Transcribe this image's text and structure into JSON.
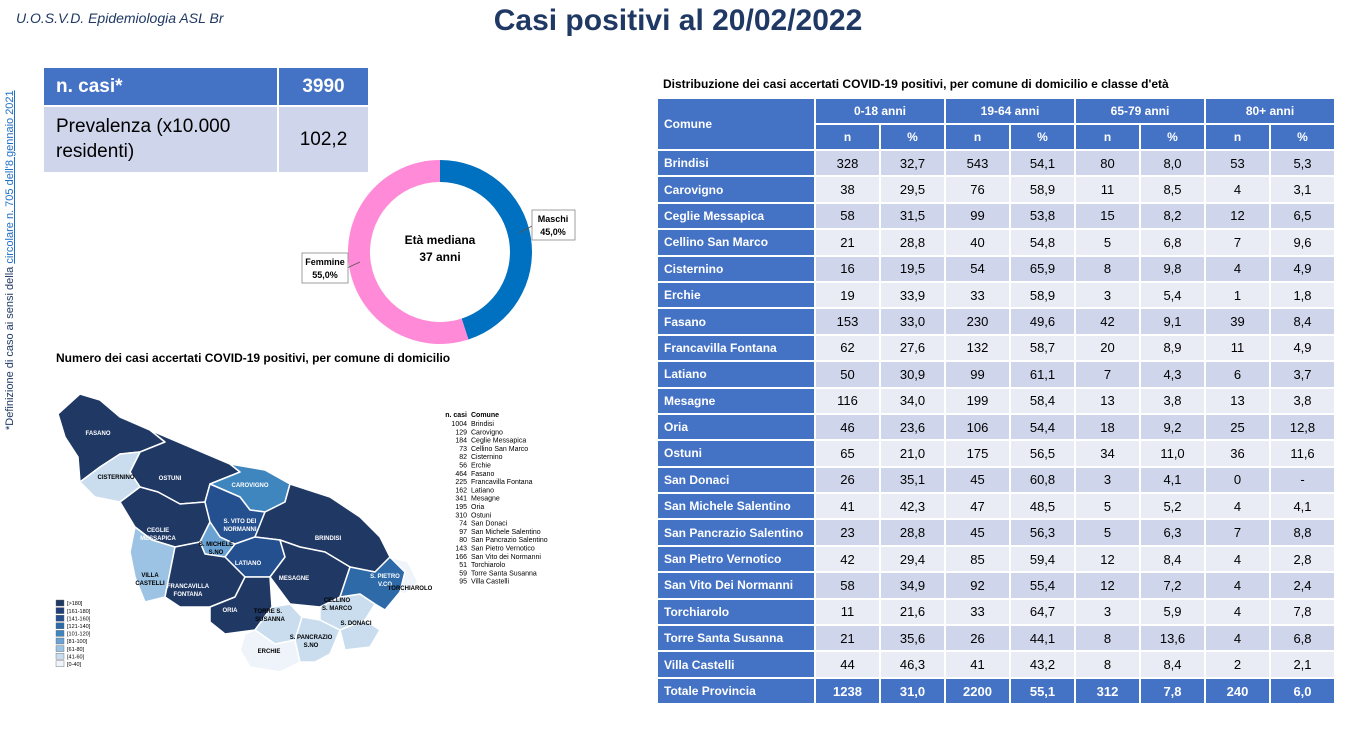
{
  "header": {
    "org": "U.O.S.V.D. Epidemiologia ASL Br",
    "title": "Casi positivi al 20/02/2022"
  },
  "side_note": {
    "prefix": "*Definizione di caso ai sensi della ",
    "link": "circolare n. 705 dell'8 gennaio 2021"
  },
  "kpi": {
    "cases_label": "n. casi*",
    "cases_value": "3990",
    "prevalence_label": "Prevalenza (x10.000 residenti)",
    "prevalence_value": "102,2"
  },
  "donut": {
    "center_line1": "Età mediana",
    "center_line2": "37 anni",
    "male_label": "Maschi",
    "male_value": "45,0%",
    "male_fraction": 0.45,
    "female_label": "Femmine",
    "female_value": "55,0%",
    "female_fraction": 0.55,
    "male_color": "#0070c0",
    "female_color": "#ff8ad8"
  },
  "map": {
    "title": "Numero dei casi accertati COVID-19 positivi, per comune di domicilio",
    "legend_header_n": "n. casi",
    "legend_header_c": "Comune",
    "list": [
      {
        "n": "1004",
        "c": "Brindisi"
      },
      {
        "n": "129",
        "c": "Carovigno"
      },
      {
        "n": "184",
        "c": "Ceglie Messapica"
      },
      {
        "n": "73",
        "c": "Cellino San Marco"
      },
      {
        "n": "82",
        "c": "Cisternino"
      },
      {
        "n": "56",
        "c": "Erchie"
      },
      {
        "n": "464",
        "c": "Fasano"
      },
      {
        "n": "225",
        "c": "Francavilla Fontana"
      },
      {
        "n": "162",
        "c": "Latiano"
      },
      {
        "n": "341",
        "c": "Mesagne"
      },
      {
        "n": "195",
        "c": "Oria"
      },
      {
        "n": "310",
        "c": "Ostuni"
      },
      {
        "n": "74",
        "c": "San Donaci"
      },
      {
        "n": "97",
        "c": "San Michele Salentino"
      },
      {
        "n": "80",
        "c": "San Pancrazio Salentino"
      },
      {
        "n": "143",
        "c": "San Pietro Vernotico"
      },
      {
        "n": "166",
        "c": "San Vito dei Normanni"
      },
      {
        "n": "51",
        "c": "Torchiarolo"
      },
      {
        "n": "59",
        "c": "Torre Santa Susanna"
      },
      {
        "n": "95",
        "c": "Villa Castelli"
      }
    ],
    "scale": [
      "[>180]",
      "[161-180]",
      "[141-160]",
      "[121-140]",
      "[101-120]",
      "[81-100]",
      "[61-80]",
      "[41-60]",
      "[0-40]"
    ],
    "scale_colors": [
      "#1f3864",
      "#203f7a",
      "#25508f",
      "#2e6aa8",
      "#3f86bf",
      "#6aa3d3",
      "#9cc3e4",
      "#c9ddef",
      "#eef4fa"
    ],
    "labels": {
      "fasano": "FASANO",
      "ostuni": "OSTUNI",
      "cisternino": "CISTERNINO",
      "carovigno": "CAROVIGNO",
      "ceglie1": "CEGLIE",
      "ceglie2": "MESSAPICA",
      "svito1": "S. VITO DEI",
      "svito2": "NORMANNI",
      "smichele1": "S. MICHELE",
      "smichele2": "S.NO",
      "brindisi": "BRINDISI",
      "latiano": "LATIANO",
      "villa1": "VILLA",
      "villa2": "CASTELLI",
      "francavilla1": "FRANCAVILLA",
      "francavilla2": "FONTANA",
      "mesagne": "MESAGNE",
      "oria": "ORIA",
      "torre1": "TORRE S.",
      "torre2": "SUSANNA",
      "erchie": "ERCHIE",
      "span1": "S. PANCRAZIO",
      "span2": "S.NO",
      "cellino1": "CELLINO",
      "cellino2": "S. MARCO",
      "sdonaci": "S. DONACI",
      "spietro1": "S. PIETRO",
      "spietro2": "V.CO",
      "torchiarolo": "TORCHIAROLO"
    }
  },
  "table": {
    "title": "Distribuzione dei casi accertati COVID-19 positivi, per comune di domicilio e classe d'età",
    "comune_header": "Comune",
    "age_groups": [
      "0-18 anni",
      "19-64 anni",
      "65-79 anni",
      "80+ anni"
    ],
    "n_header": "n",
    "pct_header": "%",
    "rows": [
      {
        "name": "Brindisi",
        "v": [
          "328",
          "32,7",
          "543",
          "54,1",
          "80",
          "8,0",
          "53",
          "5,3"
        ]
      },
      {
        "name": "Carovigno",
        "v": [
          "38",
          "29,5",
          "76",
          "58,9",
          "11",
          "8,5",
          "4",
          "3,1"
        ]
      },
      {
        "name": "Ceglie Messapica",
        "v": [
          "58",
          "31,5",
          "99",
          "53,8",
          "15",
          "8,2",
          "12",
          "6,5"
        ]
      },
      {
        "name": "Cellino San Marco",
        "v": [
          "21",
          "28,8",
          "40",
          "54,8",
          "5",
          "6,8",
          "7",
          "9,6"
        ]
      },
      {
        "name": "Cisternino",
        "v": [
          "16",
          "19,5",
          "54",
          "65,9",
          "8",
          "9,8",
          "4",
          "4,9"
        ]
      },
      {
        "name": "Erchie",
        "v": [
          "19",
          "33,9",
          "33",
          "58,9",
          "3",
          "5,4",
          "1",
          "1,8"
        ]
      },
      {
        "name": "Fasano",
        "v": [
          "153",
          "33,0",
          "230",
          "49,6",
          "42",
          "9,1",
          "39",
          "8,4"
        ]
      },
      {
        "name": "Francavilla Fontana",
        "v": [
          "62",
          "27,6",
          "132",
          "58,7",
          "20",
          "8,9",
          "11",
          "4,9"
        ]
      },
      {
        "name": "Latiano",
        "v": [
          "50",
          "30,9",
          "99",
          "61,1",
          "7",
          "4,3",
          "6",
          "3,7"
        ]
      },
      {
        "name": "Mesagne",
        "v": [
          "116",
          "34,0",
          "199",
          "58,4",
          "13",
          "3,8",
          "13",
          "3,8"
        ]
      },
      {
        "name": "Oria",
        "v": [
          "46",
          "23,6",
          "106",
          "54,4",
          "18",
          "9,2",
          "25",
          "12,8"
        ]
      },
      {
        "name": "Ostuni",
        "v": [
          "65",
          "21,0",
          "175",
          "56,5",
          "34",
          "11,0",
          "36",
          "11,6"
        ]
      },
      {
        "name": "San Donaci",
        "v": [
          "26",
          "35,1",
          "45",
          "60,8",
          "3",
          "4,1",
          "0",
          "-"
        ]
      },
      {
        "name": "San Michele Salentino",
        "v": [
          "41",
          "42,3",
          "47",
          "48,5",
          "5",
          "5,2",
          "4",
          "4,1"
        ]
      },
      {
        "name": "San Pancrazio Salentino",
        "v": [
          "23",
          "28,8",
          "45",
          "56,3",
          "5",
          "6,3",
          "7",
          "8,8"
        ]
      },
      {
        "name": "San Pietro Vernotico",
        "v": [
          "42",
          "29,4",
          "85",
          "59,4",
          "12",
          "8,4",
          "4",
          "2,8"
        ]
      },
      {
        "name": "San Vito Dei Normanni",
        "v": [
          "58",
          "34,9",
          "92",
          "55,4",
          "12",
          "7,2",
          "4",
          "2,4"
        ]
      },
      {
        "name": "Torchiarolo",
        "v": [
          "11",
          "21,6",
          "33",
          "64,7",
          "3",
          "5,9",
          "4",
          "7,8"
        ]
      },
      {
        "name": "Torre Santa Susanna",
        "v": [
          "21",
          "35,6",
          "26",
          "44,1",
          "8",
          "13,6",
          "4",
          "6,8"
        ]
      },
      {
        "name": "Villa Castelli",
        "v": [
          "44",
          "46,3",
          "41",
          "43,2",
          "8",
          "8,4",
          "2",
          "2,1"
        ]
      }
    ],
    "total": {
      "name": "Totale Provincia",
      "v": [
        "1238",
        "31,0",
        "2200",
        "55,1",
        "312",
        "7,8",
        "240",
        "6,0"
      ]
    }
  }
}
